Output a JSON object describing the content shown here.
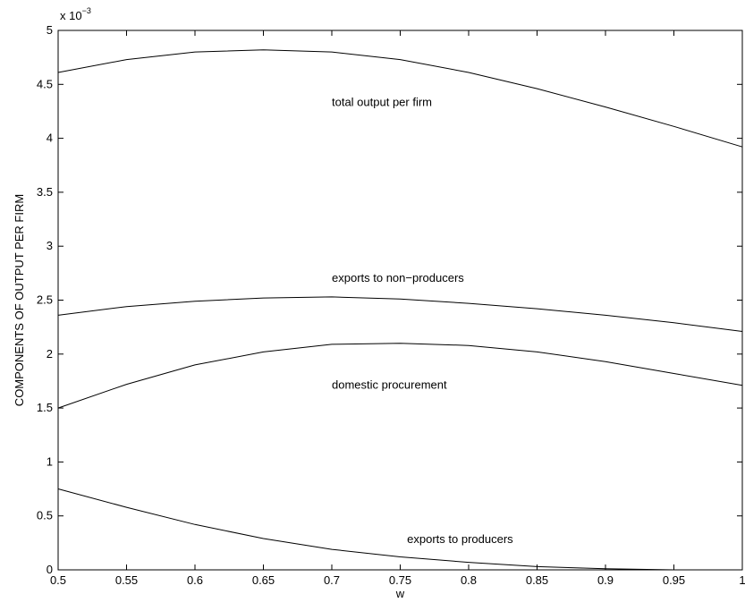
{
  "chart_data": {
    "type": "line",
    "xlabel": "w",
    "ylabel": "COMPONENTS OF OUTPUT PER FIRM",
    "xlim": [
      0.5,
      1.0
    ],
    "ylim": [
      0,
      0.005
    ],
    "x_ticks": [
      0.5,
      0.55,
      0.6,
      0.65,
      0.7,
      0.75,
      0.8,
      0.85,
      0.9,
      0.95,
      1.0
    ],
    "x_tick_labels": [
      "0.5",
      "0.55",
      "0.6",
      "0.65",
      "0.7",
      "0.75",
      "0.8",
      "0.85",
      "0.9",
      "0.95",
      "1"
    ],
    "y_ticks": [
      0,
      0.0005,
      0.001,
      0.0015,
      0.002,
      0.0025,
      0.003,
      0.0035,
      0.004,
      0.0045,
      0.005
    ],
    "y_tick_labels": [
      "0",
      "0.5",
      "1",
      "1.5",
      "2",
      "2.5",
      "3",
      "3.5",
      "4",
      "4.5",
      "5"
    ],
    "y_exponent_label": "x 10",
    "y_exponent_power": "−3",
    "grid": false,
    "x": [
      0.5,
      0.55,
      0.6,
      0.65,
      0.7,
      0.75,
      0.8,
      0.85,
      0.9,
      0.95,
      1.0
    ],
    "series": [
      {
        "values": [
          0.00461,
          0.00473,
          0.0048,
          0.00482,
          0.0048,
          0.00473,
          0.00461,
          0.00446,
          0.00429,
          0.00411,
          0.00392
        ]
      },
      {
        "values": [
          0.00236,
          0.00244,
          0.00249,
          0.00252,
          0.00253,
          0.00251,
          0.00247,
          0.00242,
          0.00236,
          0.00229,
          0.00221
        ]
      },
      {
        "values": [
          0.0015,
          0.00172,
          0.0019,
          0.00202,
          0.00209,
          0.0021,
          0.00208,
          0.00202,
          0.00193,
          0.00182,
          0.00171
        ]
      },
      {
        "values": [
          0.00075,
          0.00058,
          0.00042,
          0.00029,
          0.00019,
          0.00012,
          7e-05,
          3e-05,
          1e-05,
          0.0,
          0.0
        ]
      }
    ],
    "annotations": [
      {
        "text": "total output per firm",
        "x": 0.7,
        "y": 0.0043
      },
      {
        "text": "exports to non−producers",
        "x": 0.7,
        "y": 0.00267
      },
      {
        "text": "domestic procurement",
        "x": 0.7,
        "y": 0.00168
      },
      {
        "text": "exports to producers",
        "x": 0.755,
        "y": 0.00025
      }
    ]
  }
}
